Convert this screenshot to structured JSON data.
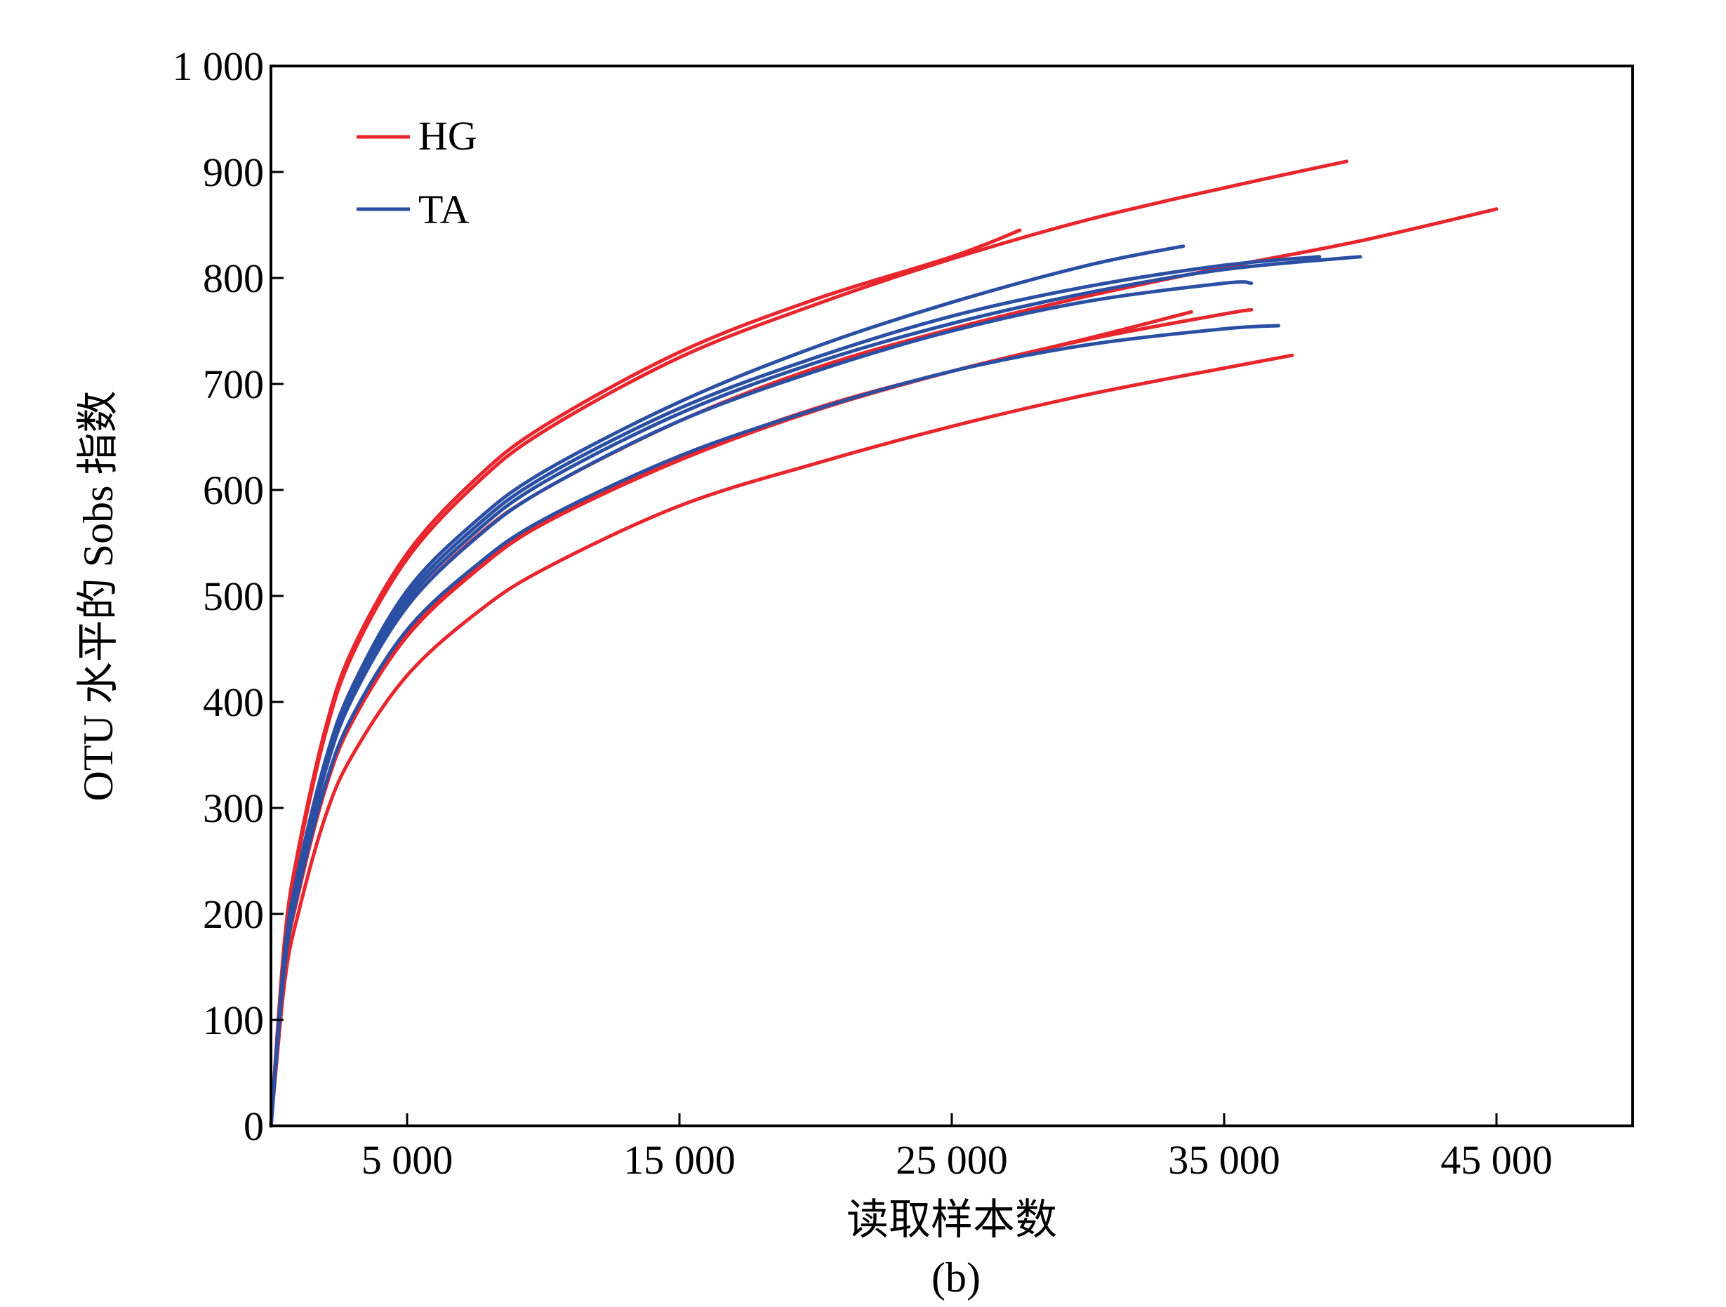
{
  "chart_data": {
    "type": "line",
    "caption": "(b)",
    "xlabel": "读取样本数",
    "ylabel": "OTU 水平的 Sobs 指数",
    "xlim": [
      0,
      50000
    ],
    "ylim": [
      0,
      1000
    ],
    "xticks": [
      5000,
      15000,
      25000,
      35000,
      45000
    ],
    "xtick_labels": [
      "5 000",
      "15 000",
      "25 000",
      "35 000",
      "45 000"
    ],
    "yticks": [
      0,
      100,
      200,
      300,
      400,
      500,
      600,
      700,
      800,
      900,
      1000
    ],
    "ytick_labels": [
      "0",
      "100",
      "200",
      "300",
      "400",
      "500",
      "600",
      "700",
      "800",
      "900",
      "1 000"
    ],
    "grid": false,
    "legend": {
      "position": "top-left",
      "entries": [
        {
          "name": "HG",
          "color": "#e8262d"
        },
        {
          "name": "TA",
          "color": "#2a4fa3"
        }
      ]
    },
    "curve_points_x": [
      0,
      500,
      1000,
      2000,
      3000,
      5000,
      7500,
      10000,
      15000,
      20000,
      25000,
      30000,
      35000,
      40000,
      45000
    ],
    "series": [
      {
        "group": "HG",
        "color": "#e8262d",
        "end_x": 27500,
        "end_y": 845,
        "y": [
          0,
          175,
          260,
          375,
          450,
          540,
          610,
          660,
          730,
          780,
          820
        ]
      },
      {
        "group": "HG",
        "color": "#e8262d",
        "end_x": 39500,
        "end_y": 910,
        "y": [
          0,
          170,
          255,
          370,
          445,
          535,
          605,
          655,
          725,
          775,
          818,
          855,
          885
        ]
      },
      {
        "group": "HG",
        "color": "#e8262d",
        "end_x": 45000,
        "end_y": 865,
        "y": [
          0,
          155,
          230,
          335,
          405,
          490,
          555,
          600,
          665,
          715,
          752,
          783,
          810,
          835
        ]
      },
      {
        "group": "HG",
        "color": "#e8262d",
        "end_x": 36000,
        "end_y": 770,
        "y": [
          0,
          150,
          220,
          320,
          385,
          465,
          525,
          570,
          630,
          677,
          712,
          742,
          766
        ]
      },
      {
        "group": "HG",
        "color": "#e8262d",
        "end_x": 33800,
        "end_y": 768,
        "y": [
          0,
          148,
          218,
          318,
          382,
          462,
          523,
          568,
          628,
          675,
          712,
          743
        ]
      },
      {
        "group": "HG",
        "color": "#e8262d",
        "end_x": 37500,
        "end_y": 727,
        "y": [
          0,
          135,
          200,
          292,
          350,
          425,
          483,
          525,
          585,
          625,
          660,
          690,
          715
        ]
      },
      {
        "group": "TA",
        "color": "#2a4fa3",
        "end_x": 33500,
        "end_y": 830,
        "y": [
          0,
          162,
          240,
          345,
          415,
          505,
          570,
          617,
          683,
          735,
          777,
          812
        ]
      },
      {
        "group": "TA",
        "color": "#2a4fa3",
        "end_x": 38500,
        "end_y": 820,
        "y": [
          0,
          160,
          237,
          342,
          412,
          500,
          565,
          612,
          677,
          725,
          764,
          792,
          812
        ]
      },
      {
        "group": "TA",
        "color": "#2a4fa3",
        "end_x": 40000,
        "end_y": 820,
        "y": [
          0,
          158,
          234,
          338,
          408,
          495,
          560,
          607,
          672,
          720,
          757,
          786,
          808,
          819
        ]
      },
      {
        "group": "TA",
        "color": "#2a4fa3",
        "end_x": 36000,
        "end_y": 795,
        "y": [
          0,
          156,
          232,
          335,
          404,
          490,
          554,
          600,
          665,
          712,
          750,
          778,
          795
        ]
      },
      {
        "group": "TA",
        "color": "#2a4fa3",
        "end_x": 37000,
        "end_y": 755,
        "y": [
          0,
          150,
          222,
          322,
          387,
          468,
          528,
          572,
          632,
          676,
          712,
          737,
          752
        ]
      }
    ]
  }
}
